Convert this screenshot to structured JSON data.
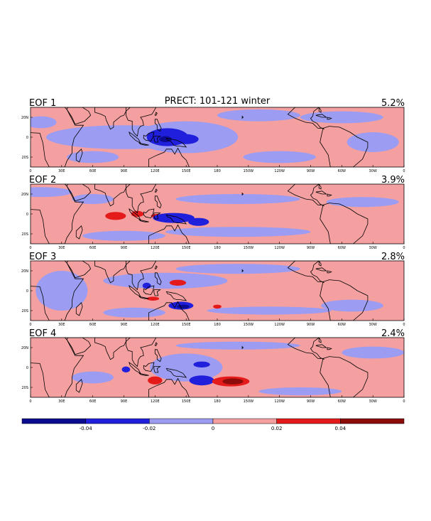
{
  "chart_data": {
    "type": "heatmap",
    "title": "PRECT: 101-121 winter",
    "panels": [
      {
        "label": "EOF 1",
        "variance": "5.2%"
      },
      {
        "label": "EOF 2",
        "variance": "3.9%"
      },
      {
        "label": "EOF 3",
        "variance": "2.8%"
      },
      {
        "label": "EOF 4",
        "variance": "2.4%"
      }
    ],
    "x_ticks": [
      "0",
      "30E",
      "60E",
      "90E",
      "120E",
      "150E",
      "180",
      "150W",
      "120W",
      "90W",
      "60W",
      "30W",
      "0"
    ],
    "y_ticks": [
      "20N",
      "0",
      "20S"
    ],
    "lon_range": [
      0,
      360
    ],
    "lat_range": [
      -30,
      30
    ],
    "colorbar": {
      "levels": [
        -0.06,
        -0.04,
        -0.02,
        0,
        0.02,
        0.04,
        0.06
      ],
      "tick_labels": [
        "-0.04",
        "-0.02",
        "0",
        "0.02",
        "0.04"
      ],
      "colors": [
        "#0b0b8f",
        "#1f1fdc",
        "#9c9cf2",
        "#f5a0a0",
        "#e51a1a",
        "#8c0b0b"
      ]
    }
  }
}
